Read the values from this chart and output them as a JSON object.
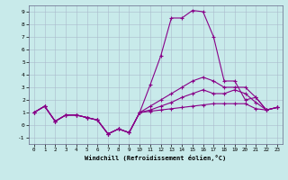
{
  "xlabel": "Windchill (Refroidissement éolien,°C)",
  "x": [
    0,
    1,
    2,
    3,
    4,
    5,
    6,
    7,
    8,
    9,
    10,
    11,
    12,
    13,
    14,
    15,
    16,
    17,
    18,
    19,
    20,
    21,
    22,
    23
  ],
  "line1": [
    1.0,
    1.5,
    0.3,
    0.8,
    0.8,
    0.6,
    0.4,
    -0.7,
    -0.3,
    -0.6,
    1.0,
    3.2,
    5.5,
    8.5,
    8.5,
    9.1,
    9.0,
    7.0,
    3.5,
    3.5,
    2.0,
    2.2,
    1.2,
    1.4
  ],
  "line2": [
    1.0,
    1.5,
    0.3,
    0.8,
    0.8,
    0.6,
    0.4,
    -0.7,
    -0.3,
    -0.6,
    1.0,
    1.5,
    2.0,
    2.5,
    3.0,
    3.5,
    3.8,
    3.5,
    3.0,
    3.0,
    3.0,
    2.2,
    1.2,
    1.4
  ],
  "line3": [
    1.0,
    1.5,
    0.3,
    0.8,
    0.8,
    0.6,
    0.4,
    -0.7,
    -0.3,
    -0.6,
    1.0,
    1.2,
    1.5,
    1.8,
    2.2,
    2.5,
    2.8,
    2.5,
    2.5,
    2.8,
    2.5,
    1.8,
    1.2,
    1.4
  ],
  "line4": [
    1.0,
    1.5,
    0.3,
    0.8,
    0.8,
    0.6,
    0.4,
    -0.7,
    -0.3,
    -0.6,
    1.0,
    1.1,
    1.2,
    1.3,
    1.4,
    1.5,
    1.6,
    1.7,
    1.7,
    1.7,
    1.7,
    1.3,
    1.2,
    1.4
  ],
  "ylim": [
    -1.5,
    9.5
  ],
  "xlim": [
    -0.5,
    23.5
  ],
  "yticks": [
    -1,
    0,
    1,
    2,
    3,
    4,
    5,
    6,
    7,
    8,
    9
  ],
  "xticks": [
    0,
    1,
    2,
    3,
    4,
    5,
    6,
    7,
    8,
    9,
    10,
    11,
    12,
    13,
    14,
    15,
    16,
    17,
    18,
    19,
    20,
    21,
    22,
    23
  ],
  "line_color": "#880088",
  "bg_color": "#c8eaea",
  "grid_color": "#aabbcc",
  "spine_color": "#666688"
}
